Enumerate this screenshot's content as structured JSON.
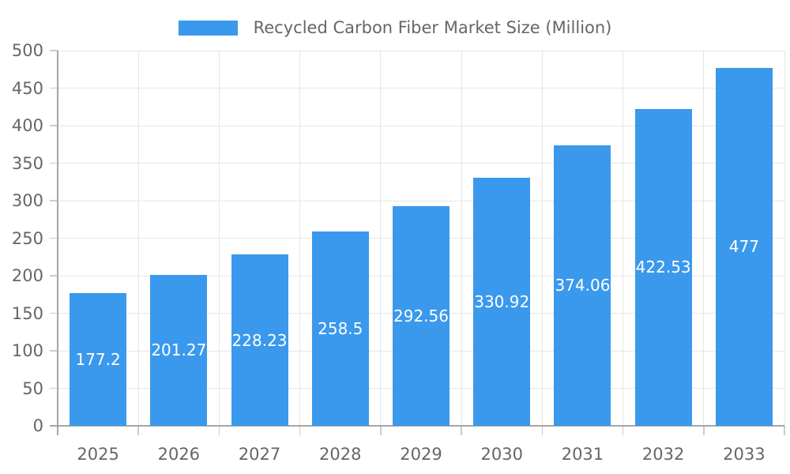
{
  "chart_data": {
    "type": "bar",
    "title": "",
    "legend": "Recycled Carbon Fiber Market Size (Million)",
    "legend_position": "top",
    "categories": [
      "2025",
      "2026",
      "2027",
      "2028",
      "2029",
      "2030",
      "2031",
      "2032",
      "2033"
    ],
    "series": [
      {
        "name": "Recycled Carbon Fiber Market Size (Million)",
        "values": [
          177.2,
          201.27,
          228.23,
          258.5,
          292.56,
          330.92,
          374.06,
          422.53,
          477
        ]
      }
    ],
    "xlabel": "",
    "ylabel": "",
    "ylim": [
      0,
      500
    ],
    "ytick_step": 50,
    "ytick_labels": [
      "0",
      "50",
      "100",
      "150",
      "200",
      "250",
      "300",
      "350",
      "400",
      "450",
      "500"
    ],
    "grid": true,
    "colors": {
      "bar": "#3a99ec",
      "axis_text": "#666666",
      "value_text": "#ffffff",
      "grid_line": "#e6e6e6",
      "axis_line": "#a6a6a6",
      "tick_line": "#cccccc",
      "background": "#ffffff"
    }
  }
}
